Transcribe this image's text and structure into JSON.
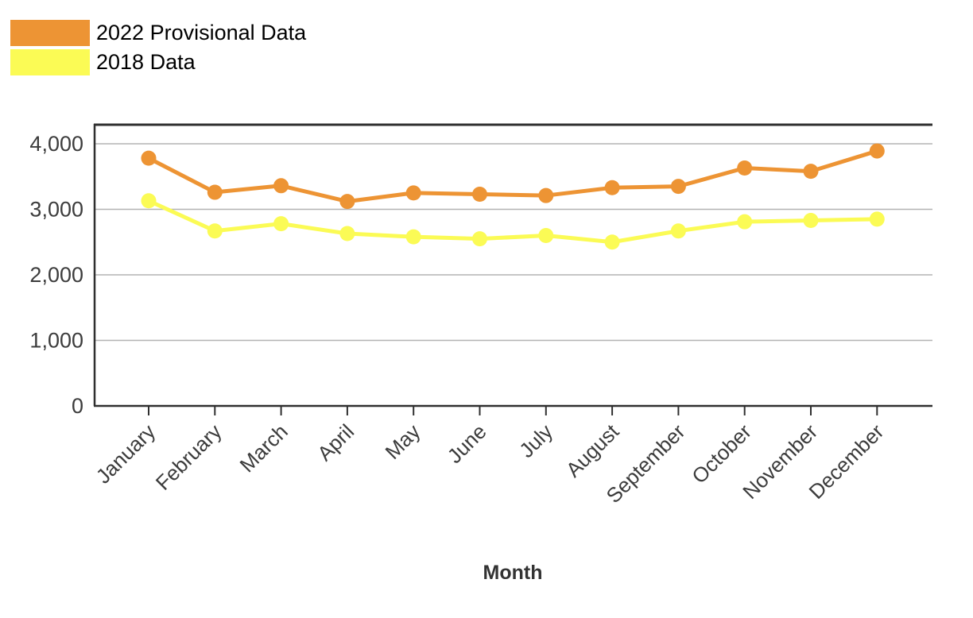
{
  "legend": {
    "items": [
      {
        "label": "2022 Provisional Data",
        "color": "#ED9434"
      },
      {
        "label": "2018 Data",
        "color": "#FBFB55"
      }
    ]
  },
  "chart_data": {
    "type": "line",
    "title": "",
    "xlabel": "Month",
    "ylabel": "",
    "categories": [
      "January",
      "February",
      "March",
      "April",
      "May",
      "June",
      "July",
      "August",
      "September",
      "October",
      "November",
      "December"
    ],
    "series": [
      {
        "name": "2022 Provisional Data",
        "color": "#ED9434",
        "values": [
          3780,
          3260,
          3360,
          3120,
          3250,
          3230,
          3210,
          3330,
          3350,
          3630,
          3580,
          3890
        ]
      },
      {
        "name": "2018 Data",
        "color": "#FBFB55",
        "values": [
          3130,
          2670,
          2780,
          2630,
          2580,
          2550,
          2600,
          2500,
          2670,
          2810,
          2830,
          2850
        ]
      }
    ],
    "ylim": [
      0,
      4290
    ],
    "yticks": [
      0,
      1000,
      2000,
      3000,
      4000
    ],
    "grid": true,
    "legend_position": "top-left",
    "colors": {
      "grid": "#B3B3B3",
      "axis": "#2F2F2F"
    }
  }
}
